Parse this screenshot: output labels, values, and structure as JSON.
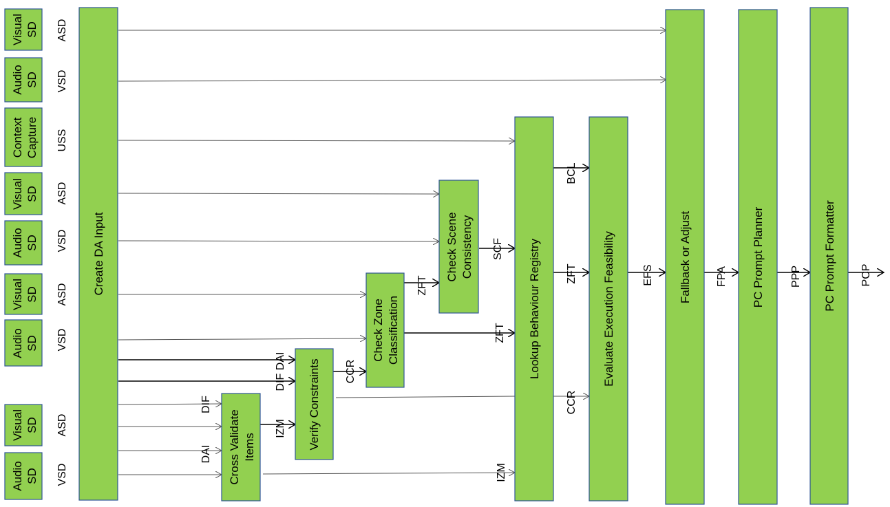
{
  "sources": [
    {
      "name": "Visual",
      "line2": "SD",
      "signal": "ASD"
    },
    {
      "name": "Audio",
      "line2": "SD",
      "signal": "VSD"
    },
    {
      "name": "Context",
      "line2": "Capture",
      "signal": "USS"
    },
    {
      "name": "Visual",
      "line2": "SD",
      "signal": "ASD"
    },
    {
      "name": "Audio",
      "line2": "SD",
      "signal": "VSD"
    },
    {
      "name": "Visual",
      "line2": "SD",
      "signal": "ASD"
    },
    {
      "name": "Audio",
      "line2": "SD",
      "signal": "VSD"
    },
    {
      "name": "Visual",
      "line2": "SD",
      "signal": "ASD"
    },
    {
      "name": "Audio",
      "line2": "SD",
      "signal": "VSD"
    }
  ],
  "blocks": {
    "create_da_input": "Create DA Input",
    "cross_validate_1": "Cross Validate",
    "cross_validate_2": "Items",
    "verify_constraints": "Verify Constraints",
    "check_zone_1": "Check Zone",
    "check_zone_2": "Classification",
    "check_scene_1": "Check Scene",
    "check_scene_2": "Consistency",
    "lookup_registry": "Lookup Behaviour Registry",
    "evaluate_feasibility": "Evaluate Execution Feasibility",
    "fallback": "Fallback or Adjust",
    "planner": "PC Prompt Planner",
    "formatter": "PC Prompt Formatter"
  },
  "signals": {
    "dif": "DIF",
    "dai": "DAI",
    "dif_dai": "DIF DAI",
    "izm": "IZM",
    "ccr": "CCR",
    "zft": "ZFT",
    "scf": "SCF",
    "bcl": "BCL",
    "efs": "EFS",
    "fpa": "FPA",
    "ppp": "PPP",
    "pcp": "PCP"
  }
}
